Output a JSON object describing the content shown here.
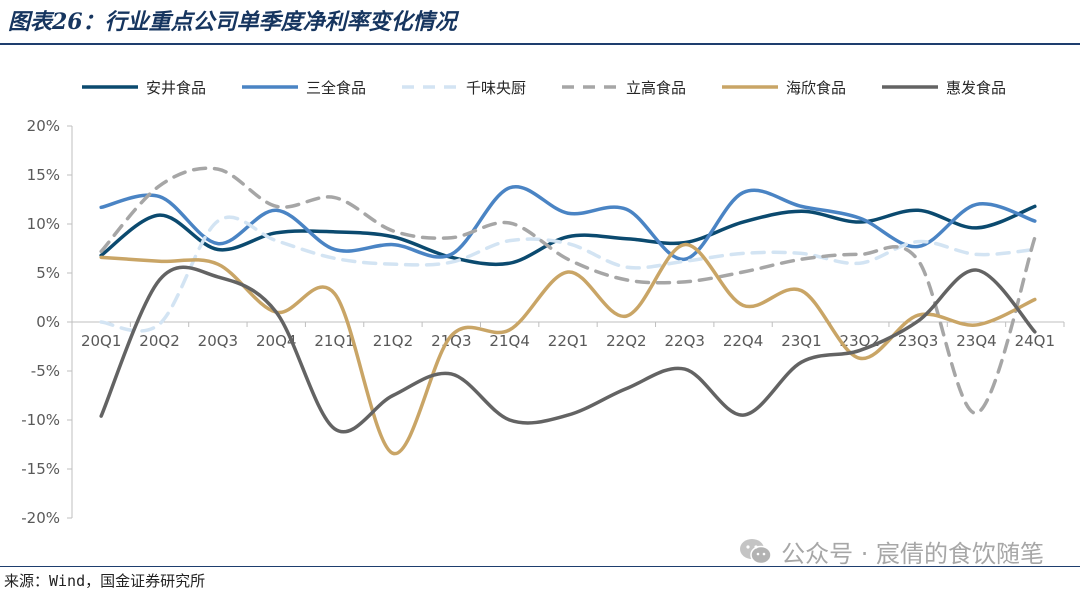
{
  "header": {
    "title": "图表26：行业重点公司单季度净利率变化情况"
  },
  "footer": {
    "source": "来源：Wind，国金证券研究所",
    "watermark": "公众号 · 宸倩的食饮随笔",
    "watermark_icon": "wechat-icon"
  },
  "chart_data": {
    "type": "line",
    "categories": [
      "20Q1",
      "20Q2",
      "20Q3",
      "20Q4",
      "21Q1",
      "21Q2",
      "21Q3",
      "21Q4",
      "22Q1",
      "22Q2",
      "22Q3",
      "22Q4",
      "23Q1",
      "23Q2",
      "23Q3",
      "23Q4",
      "24Q1"
    ],
    "ylim": [
      -20,
      20
    ],
    "yticks": [
      20,
      15,
      10,
      5,
      0,
      -5,
      -10,
      -15,
      -20
    ],
    "ytick_labels": [
      "20%",
      "15%",
      "10%",
      "5%",
      "0%",
      "-5%",
      "-10%",
      "-15%",
      "-20%"
    ],
    "legend_position": "top",
    "grid": false,
    "series": [
      {
        "name": "安井食品",
        "color": "#0b4a6f",
        "dash": "solid",
        "values": [
          6.8,
          10.9,
          7.4,
          9.1,
          9.2,
          8.7,
          6.6,
          6.0,
          8.7,
          8.5,
          8.1,
          10.2,
          11.3,
          10.2,
          11.4,
          9.6,
          11.8
        ]
      },
      {
        "name": "三全食品",
        "color": "#4a84c4",
        "dash": "solid",
        "values": [
          11.7,
          12.8,
          8.0,
          11.4,
          7.4,
          7.9,
          6.9,
          13.7,
          11.1,
          11.5,
          6.4,
          13.2,
          11.8,
          10.6,
          7.7,
          12.0,
          10.3
        ]
      },
      {
        "name": "千味央厨",
        "color": "#d3e4f3",
        "dash": "dashed",
        "values": [
          0.0,
          -0.2,
          10.3,
          8.3,
          6.5,
          5.9,
          6.1,
          8.3,
          8.0,
          5.6,
          6.2,
          7.0,
          7.0,
          6.0,
          8.2,
          6.9,
          7.4
        ]
      },
      {
        "name": "立高食品",
        "color": "#a6a6a6",
        "dash": "dashed",
        "values": [
          7.2,
          13.9,
          15.6,
          11.8,
          12.7,
          9.3,
          8.6,
          10.1,
          6.4,
          4.3,
          4.1,
          5.1,
          6.4,
          6.9,
          6.3,
          -9.3,
          8.6
        ]
      },
      {
        "name": "海欣食品",
        "color": "#c9a566",
        "dash": "solid",
        "values": [
          6.6,
          6.2,
          5.9,
          1.0,
          2.9,
          -13.4,
          -1.4,
          -0.8,
          5.1,
          0.6,
          7.9,
          1.7,
          3.2,
          -3.7,
          0.7,
          -0.3,
          2.3
        ]
      },
      {
        "name": "惠发食品",
        "color": "#636363",
        "dash": "solid",
        "values": [
          -9.6,
          4.3,
          4.6,
          1.0,
          -10.9,
          -7.5,
          -5.3,
          -10.0,
          -9.5,
          -6.8,
          -4.8,
          -9.5,
          -4.1,
          -2.9,
          0.1,
          5.3,
          -1.0
        ]
      }
    ]
  }
}
